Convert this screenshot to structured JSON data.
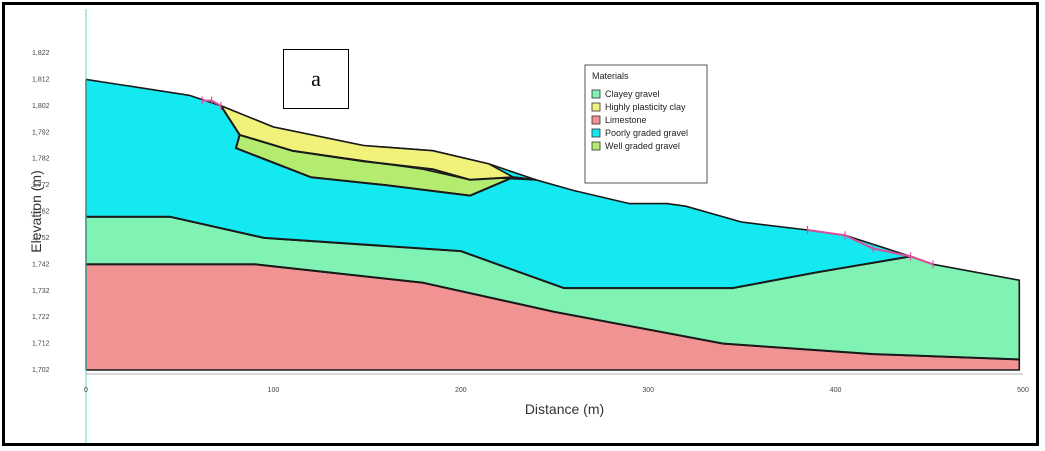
{
  "panel_label": "a",
  "chart_data": {
    "type": "area",
    "title": "",
    "xlabel": "Distance (m)",
    "ylabel": "Elevation (m)",
    "xlim": [
      0,
      500
    ],
    "ylim": [
      1702,
      1822
    ],
    "x_ticks": [
      0,
      100,
      200,
      300,
      400,
      500
    ],
    "y_ticks": [
      1702,
      1712,
      1722,
      1732,
      1742,
      1752,
      1762,
      1772,
      1782,
      1792,
      1802,
      1812,
      1822
    ],
    "grid": false,
    "legend": {
      "title": "Materials",
      "placement": "top-right",
      "items": [
        {
          "name": "Clayey gravel",
          "color": "#7ff2b4"
        },
        {
          "name": "Highly plasticity clay",
          "color": "#f1f27a"
        },
        {
          "name": "Limestone",
          "color": "#f29393"
        },
        {
          "name": "Poorly graded gravel",
          "color": "#14e8f0"
        },
        {
          "name": "Well graded gravel",
          "color": "#b3ec6f"
        }
      ]
    },
    "regions": [
      {
        "material": "Limestone",
        "color": "#f29393",
        "points": [
          [
            0,
            1742
          ],
          [
            90,
            1742
          ],
          [
            180,
            1735
          ],
          [
            250,
            1724
          ],
          [
            340,
            1712
          ],
          [
            420,
            1708
          ],
          [
            498,
            1706
          ],
          [
            498,
            1702
          ],
          [
            0,
            1702
          ]
        ]
      },
      {
        "material": "Clayey gravel",
        "color": "#7ff2b4",
        "points": [
          [
            0,
            1760
          ],
          [
            45,
            1760
          ],
          [
            95,
            1752
          ],
          [
            200,
            1747
          ],
          [
            255,
            1733
          ],
          [
            345,
            1733
          ],
          [
            390,
            1739
          ],
          [
            440,
            1745
          ],
          [
            452,
            1742
          ],
          [
            498,
            1736
          ],
          [
            498,
            1706
          ],
          [
            420,
            1708
          ],
          [
            340,
            1712
          ],
          [
            250,
            1724
          ],
          [
            180,
            1735
          ],
          [
            90,
            1742
          ],
          [
            0,
            1742
          ]
        ]
      },
      {
        "material": "Poorly graded gravel",
        "color": "#14e8f0",
        "points": [
          [
            0,
            1812
          ],
          [
            55,
            1806
          ],
          [
            72,
            1802
          ],
          [
            100,
            1794
          ],
          [
            148,
            1787
          ],
          [
            185,
            1785
          ],
          [
            215,
            1780
          ],
          [
            240,
            1774
          ],
          [
            260,
            1770
          ],
          [
            290,
            1765
          ],
          [
            310,
            1765
          ],
          [
            320,
            1764
          ],
          [
            350,
            1758
          ],
          [
            385,
            1755
          ],
          [
            405,
            1753
          ],
          [
            440,
            1745
          ],
          [
            390,
            1739
          ],
          [
            345,
            1733
          ],
          [
            255,
            1733
          ],
          [
            200,
            1747
          ],
          [
            95,
            1752
          ],
          [
            45,
            1760
          ],
          [
            0,
            1760
          ]
        ]
      },
      {
        "material": "Well graded gravel",
        "color": "#b3ec6f",
        "points": [
          [
            82,
            1791
          ],
          [
            110,
            1785
          ],
          [
            148,
            1781
          ],
          [
            185,
            1778
          ],
          [
            210,
            1775
          ],
          [
            240,
            1774
          ],
          [
            228,
            1775
          ],
          [
            205,
            1768
          ],
          [
            160,
            1772
          ],
          [
            120,
            1775
          ],
          [
            80,
            1786
          ]
        ]
      },
      {
        "material": "Highly plasticity clay",
        "color": "#f1f27a",
        "points": [
          [
            72,
            1802
          ],
          [
            100,
            1794
          ],
          [
            148,
            1787
          ],
          [
            185,
            1785
          ],
          [
            215,
            1780
          ],
          [
            228,
            1775
          ],
          [
            205,
            1774
          ],
          [
            180,
            1778
          ],
          [
            110,
            1785
          ],
          [
            82,
            1791
          ]
        ]
      }
    ],
    "boundaries": [
      [
        [
          0,
          1760
        ],
        [
          45,
          1760
        ],
        [
          95,
          1752
        ],
        [
          200,
          1747
        ],
        [
          255,
          1733
        ],
        [
          345,
          1733
        ],
        [
          390,
          1739
        ],
        [
          440,
          1745
        ]
      ],
      [
        [
          0,
          1742
        ],
        [
          90,
          1742
        ],
        [
          180,
          1735
        ],
        [
          250,
          1724
        ],
        [
          340,
          1712
        ],
        [
          420,
          1708
        ],
        [
          498,
          1706
        ]
      ],
      [
        [
          72,
          1802
        ],
        [
          82,
          1791
        ],
        [
          80,
          1786
        ],
        [
          120,
          1775
        ],
        [
          160,
          1772
        ],
        [
          205,
          1768
        ],
        [
          228,
          1775
        ],
        [
          240,
          1774
        ]
      ],
      [
        [
          82,
          1791
        ],
        [
          110,
          1785
        ],
        [
          148,
          1781
        ],
        [
          185,
          1778
        ],
        [
          205,
          1774
        ],
        [
          228,
          1775
        ]
      ]
    ],
    "slip_markers": [
      {
        "points": [
          [
            62,
            1804
          ],
          [
            67,
            1804
          ],
          [
            72,
            1802
          ]
        ]
      },
      {
        "points": [
          [
            385,
            1755
          ],
          [
            405,
            1753
          ],
          [
            420,
            1748
          ],
          [
            440,
            1745
          ],
          [
            452,
            1742
          ]
        ]
      }
    ]
  }
}
